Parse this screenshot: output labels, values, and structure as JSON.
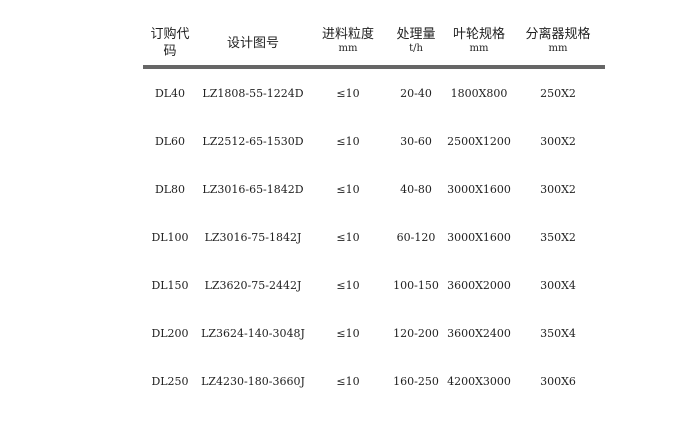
{
  "table": {
    "columns": [
      {
        "title": "订购代",
        "title2": "码",
        "unit": ""
      },
      {
        "title": "设计图号",
        "title2": "",
        "unit": ""
      },
      {
        "title": "进料粒度",
        "title2": "",
        "unit": "mm"
      },
      {
        "title": "处理量",
        "title2": "",
        "unit": "t/h"
      },
      {
        "title": "叶轮规格",
        "title2": "",
        "unit": "mm"
      },
      {
        "title": "分离器规格",
        "title2": "",
        "unit": "mm"
      }
    ],
    "rows": [
      [
        "DL40",
        "LZ1808-55-1224D",
        "≤10",
        "20-40",
        "1800X800",
        "250X2"
      ],
      [
        "DL60",
        "LZ2512-65-1530D",
        "≤10",
        "30-60",
        "2500X1200",
        "300X2"
      ],
      [
        "DL80",
        "LZ3016-65-1842D",
        "≤10",
        "40-80",
        "3000X1600",
        "300X2"
      ],
      [
        "DL100",
        "LZ3016-75-1842J",
        "≤10",
        "60-120",
        "3000X1600",
        "350X2"
      ],
      [
        "DL150",
        "LZ3620-75-2442J",
        "≤10",
        "100-150",
        "3600X2000",
        "300X4"
      ],
      [
        "DL200",
        "LZ3624-140-3048J",
        "≤10",
        "120-200",
        "3600X2400",
        "350X4"
      ],
      [
        "DL250",
        "LZ4230-180-3660J",
        "≤10",
        "160-250",
        "4200X3000",
        "300X6"
      ]
    ]
  }
}
